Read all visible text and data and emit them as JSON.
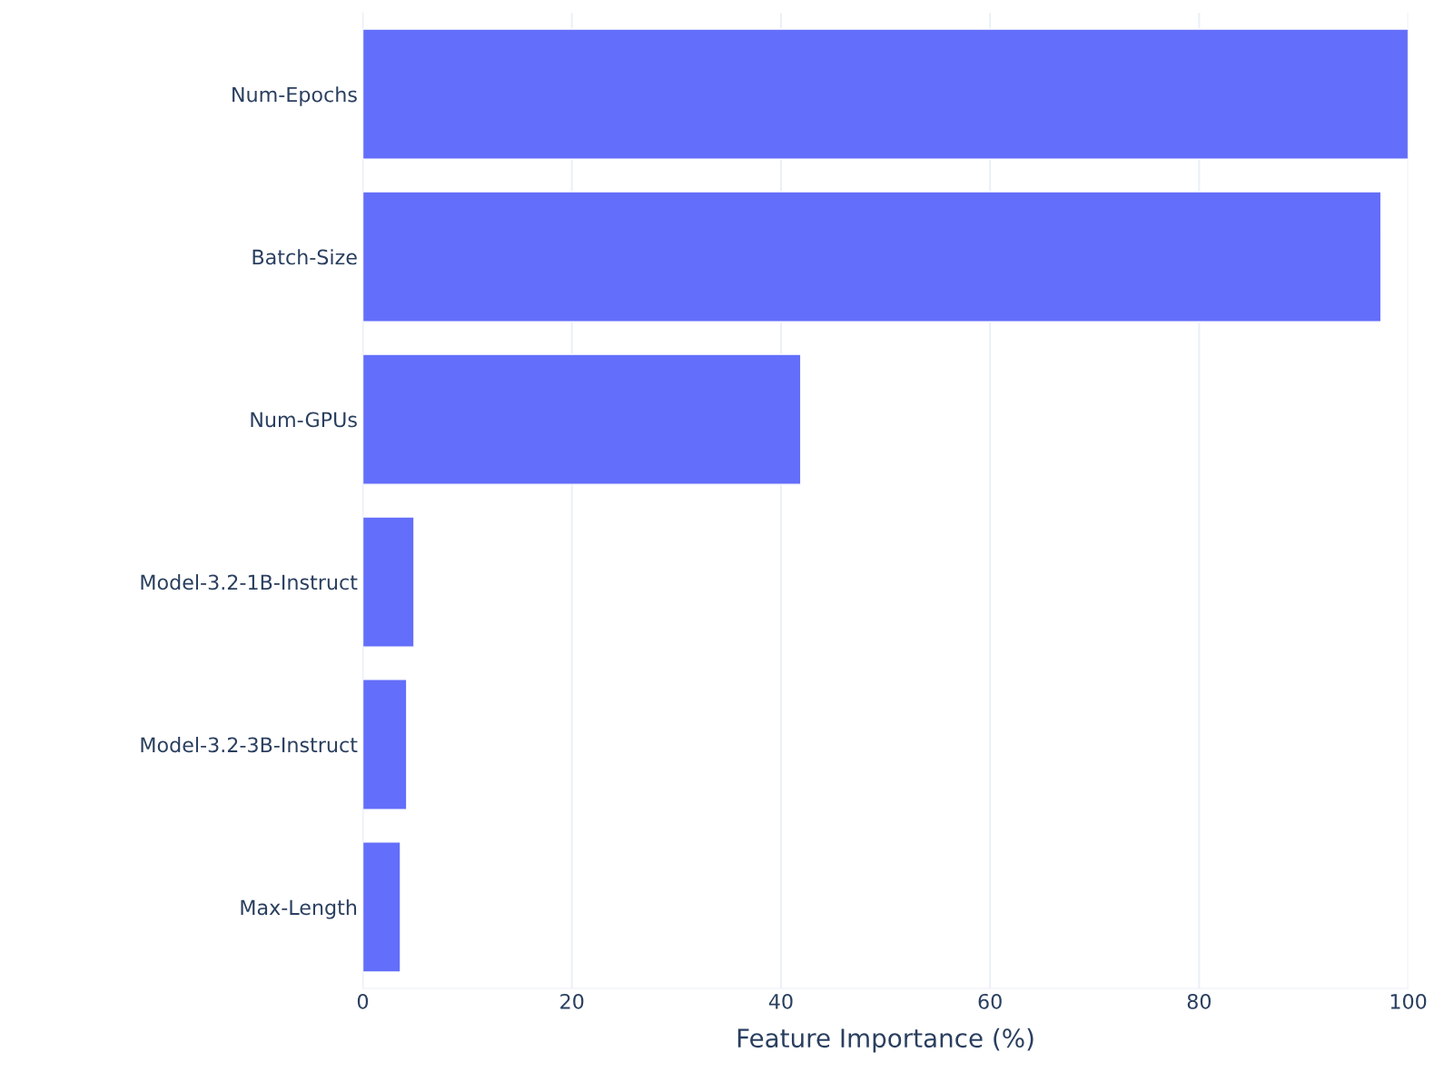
{
  "chart_data": {
    "type": "bar",
    "orientation": "horizontal",
    "xlabel": "Feature Importance (%)",
    "categories": [
      "Num-Epochs",
      "Batch-Size",
      "Num-GPUs",
      "Model-3.2-1B-Instruct",
      "Model-3.2-3B-Instruct",
      "Max-Length"
    ],
    "values": [
      100,
      97.4,
      41.9,
      4.9,
      4.2,
      3.6
    ],
    "color": "#636efa",
    "xlim": [
      0,
      100
    ],
    "xticks": [
      0,
      20,
      40,
      60,
      80,
      100
    ],
    "grid": "x"
  }
}
